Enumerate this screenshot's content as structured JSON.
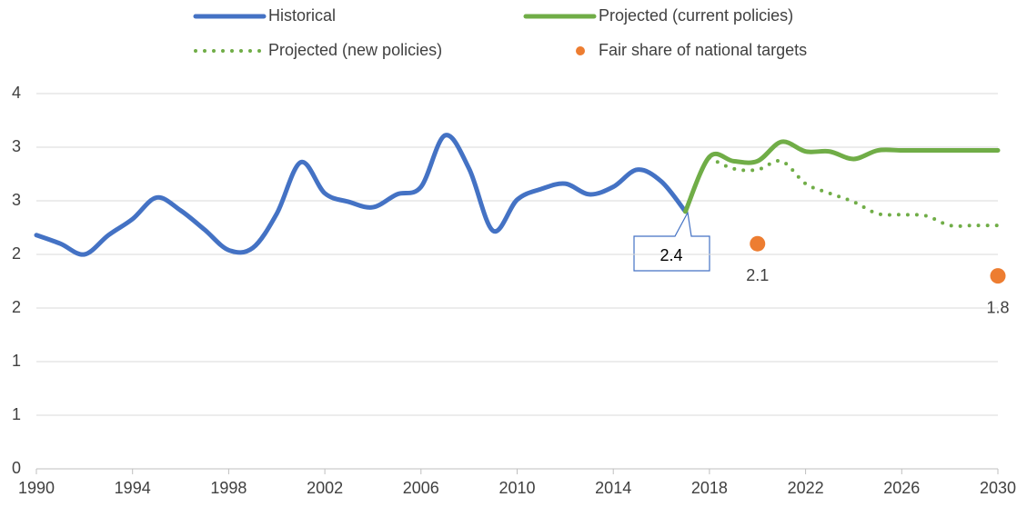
{
  "chart_data": {
    "type": "line",
    "x": [
      1990,
      1991,
      1992,
      1993,
      1994,
      1995,
      1996,
      1997,
      1998,
      1999,
      2000,
      2001,
      2002,
      2003,
      2004,
      2005,
      2006,
      2007,
      2008,
      2009,
      2010,
      2011,
      2012,
      2013,
      2014,
      2015,
      2016,
      2017,
      2018,
      2019,
      2020,
      2021,
      2022,
      2023,
      2024,
      2025,
      2026,
      2027,
      2028,
      2029,
      2030
    ],
    "xlim": [
      1990,
      2030
    ],
    "xticks": [
      1990,
      1994,
      1998,
      2002,
      2006,
      2010,
      2014,
      2018,
      2022,
      2026,
      2030
    ],
    "ylim": [
      0,
      3.5
    ],
    "yticks": [
      0,
      {
        "value": 0.5,
        "label": "1"
      },
      {
        "value": 1,
        "label": "1"
      },
      {
        "value": 1.5,
        "label": "2"
      },
      {
        "value": 2,
        "label": "2"
      },
      {
        "value": 2.5,
        "label": "3"
      },
      {
        "value": 3,
        "label": "3"
      },
      {
        "value": 3.5,
        "label": "4"
      }
    ],
    "grid": true,
    "legend": "top",
    "series": [
      {
        "name": "Historical",
        "color": "#4472c4",
        "style": "solid",
        "values": [
          2.18,
          2.1,
          2.0,
          2.18,
          2.33,
          2.53,
          2.41,
          2.23,
          2.04,
          2.06,
          2.38,
          2.86,
          2.57,
          2.49,
          2.44,
          2.56,
          2.63,
          3.11,
          2.8,
          2.22,
          2.51,
          2.61,
          2.66,
          2.56,
          2.63,
          2.79,
          2.68,
          2.4,
          null,
          null,
          null,
          null,
          null,
          null,
          null,
          null,
          null,
          null,
          null,
          null,
          null
        ]
      },
      {
        "name": "Projected (current policies)",
        "color": "#70ad47",
        "style": "solid",
        "values": [
          null,
          null,
          null,
          null,
          null,
          null,
          null,
          null,
          null,
          null,
          null,
          null,
          null,
          null,
          null,
          null,
          null,
          null,
          null,
          null,
          null,
          null,
          null,
          null,
          null,
          null,
          null,
          2.4,
          2.91,
          2.87,
          2.87,
          3.05,
          2.96,
          2.96,
          2.89,
          2.97,
          2.97,
          2.97,
          2.97,
          2.97,
          2.97
        ]
      },
      {
        "name": "Projected (new policies)",
        "color": "#70ad47",
        "style": "dotted",
        "values": [
          null,
          null,
          null,
          null,
          null,
          null,
          null,
          null,
          null,
          null,
          null,
          null,
          null,
          null,
          null,
          null,
          null,
          null,
          null,
          null,
          null,
          null,
          null,
          null,
          null,
          null,
          null,
          null,
          2.9,
          2.8,
          2.79,
          2.87,
          2.66,
          2.57,
          2.49,
          2.38,
          2.37,
          2.36,
          2.27,
          2.27,
          2.27
        ]
      },
      {
        "name": "Fair share of national targets",
        "color": "#ed7d31",
        "style": "marker",
        "values": [
          null,
          null,
          null,
          null,
          null,
          null,
          null,
          null,
          null,
          null,
          null,
          null,
          null,
          null,
          null,
          null,
          null,
          null,
          null,
          null,
          null,
          null,
          null,
          null,
          null,
          null,
          null,
          null,
          null,
          null,
          2.1,
          null,
          null,
          null,
          null,
          null,
          null,
          null,
          null,
          null,
          1.8
        ]
      }
    ]
  }
}
